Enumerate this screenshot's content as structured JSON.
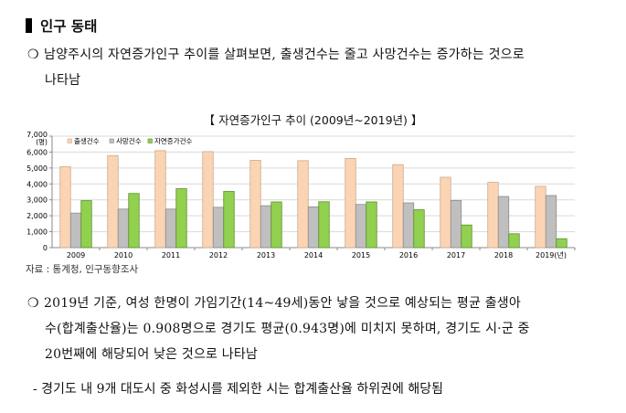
{
  "section": {
    "title": "인구 동태"
  },
  "paragraph1": {
    "bullet": "ㅇ",
    "line1": "남양주시의 자연증가인구 추이를 살펴보면, 출생건수는 줄고 사망건수는 증가하는 것으로",
    "line2": "나타남"
  },
  "chart_title": "【 자연증가인구 추이 (2009년~2019년) 】",
  "source": "자료 : 통계청, 인구동향조사",
  "paragraph2": {
    "bullet": "ㅇ",
    "line1": "2019년 기준, 여성 한명이 가임기간(14~49세)동안 낳을 것으로 예상되는 평균 출생아",
    "line2": "수(합계출산율)는 0.908명으로 경기도 평균(0.943명)에 미치지 못하며, 경기도 시·군 중",
    "line3": "20번째에 해당되어 낮은 것으로 나타남"
  },
  "dash_item": "- 경기도 내 9개 대도시 중 화성시를 제외한 시는 합계출산율 하위권에 해당됨",
  "colors": {
    "births": "#FBD4B4",
    "births_border": "#C9A98F",
    "deaths": "#BFBFBF",
    "deaths_border": "#8C8C8C",
    "natural": "#92D050",
    "natural_border": "#5E8F2A",
    "grid": "#D9D9D9"
  },
  "chart_data": {
    "type": "bar",
    "title": "자연증가인구 추이 (2009년~2019년)",
    "xlabel": "(년)",
    "ylabel": "(명)",
    "ylim": [
      0,
      7000
    ],
    "yticks": [
      "0",
      "1,000",
      "2,000",
      "3,000",
      "4,000",
      "5,000",
      "6,000",
      "7,000"
    ],
    "grid": true,
    "legend_position": "top-left",
    "categories": [
      "2009",
      "2010",
      "2011",
      "2012",
      "2013",
      "2014",
      "2015",
      "2016",
      "2017",
      "2018",
      "2019(년)"
    ],
    "series": [
      {
        "name": "출생건수",
        "values": [
          5080,
          5780,
          6090,
          6030,
          5480,
          5460,
          5600,
          5210,
          4420,
          4100,
          3850
        ]
      },
      {
        "name": "사망건수",
        "values": [
          2170,
          2420,
          2420,
          2530,
          2630,
          2560,
          2710,
          2810,
          2960,
          3210,
          3270
        ]
      },
      {
        "name": "자연증가건수",
        "values": [
          2950,
          3400,
          3700,
          3530,
          2870,
          2880,
          2870,
          2380,
          1420,
          870,
          560
        ]
      }
    ]
  }
}
